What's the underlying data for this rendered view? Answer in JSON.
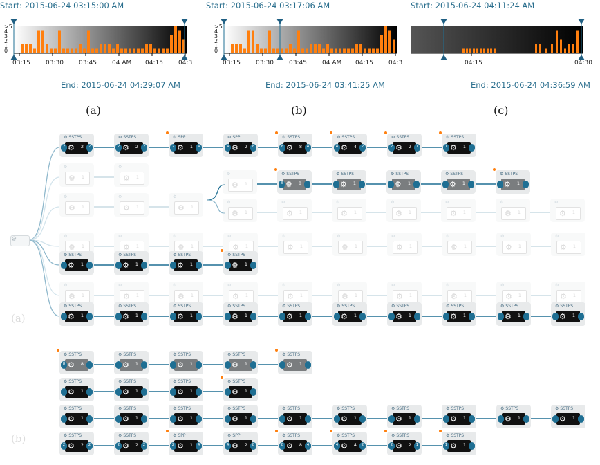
{
  "timelines": [
    {
      "start_label": "Start: 2015-06-24 03:15:00 AM",
      "end_label": "End: 2015-06-24 04:29:07 AM",
      "ticks": [
        "03:15",
        "03:30",
        "03:45",
        "04 AM",
        "04:15",
        "04:3"
      ],
      "y_ticks": [
        ">5",
        "4",
        "3",
        "2",
        "1",
        "0"
      ],
      "panel_label": "(a)"
    },
    {
      "start_label": "Start: 2015-06-24 03:17:06 AM",
      "end_label": "End: 2015-06-24 03:41:25 AM",
      "ticks": [
        "03:15",
        "03:30",
        "03:45",
        "04 AM",
        "04:15",
        "04:3"
      ],
      "y_ticks": [
        ">5",
        "4",
        "3",
        "2",
        "1",
        "0"
      ],
      "panel_label": "(b)"
    },
    {
      "start_label": "Start: 2015-06-24 04:11:24 AM",
      "end_label": "End: 2015-06-24 04:36:59 AM",
      "ticks": [
        "04:15",
        "04:30"
      ],
      "panel_label": "(c)"
    }
  ],
  "graph_a_label": "(a)",
  "graph_b_label": "(b)",
  "colors": {
    "bar": "#ff7f0e",
    "edge": "#1f6f93",
    "node_bg": "#e8eaeb",
    "node_body_dark": "#111111",
    "node_body_gray": "#7a7d7f",
    "label": "#2b6f8e"
  },
  "icon": "gear-icon",
  "graph_a_rows": [
    {
      "nodes": [
        {
          "t": "SSTPS",
          "c": "2",
          "pin": "2",
          "pin_r": "2"
        },
        {
          "t": "SSTPS",
          "c": "2",
          "pin": "2",
          "pin_r": "2"
        },
        {
          "t": "SPP",
          "c": "1",
          "dot": true,
          "pin": "2",
          "pin_r": "4"
        },
        {
          "t": "SPP",
          "c": "2",
          "pin": "4",
          "pin_r": "8"
        },
        {
          "t": "SSTPS",
          "c": "8",
          "dot": true,
          "pin": "8",
          "pin_r": "4"
        },
        {
          "t": "SSTPS",
          "c": "4",
          "dot": true,
          "pin": "4",
          "pin_r": "2"
        },
        {
          "t": "SSTPS",
          "c": "2",
          "dot": true,
          "pin": "2",
          "pin_r": "1"
        },
        {
          "t": "SSTPS",
          "c": "1",
          "dot": true,
          "pin": "1"
        }
      ]
    },
    {
      "ghost": true,
      "nodes": [
        {
          "t": "",
          "c": "1"
        },
        {
          "t": "",
          "c": "1"
        }
      ]
    },
    {
      "ghost": true,
      "nodes": [
        {
          "t": "",
          "c": "1"
        },
        {
          "t": "",
          "c": "1"
        },
        {
          "t": "",
          "c": "1"
        }
      ],
      "branch": [
        {
          "t": "",
          "c": "1",
          "ghost": true
        },
        {
          "t": "SSTPS",
          "c": "8",
          "dot": true,
          "pin": "8",
          "gray": true
        },
        {
          "t": "SSTPS",
          "c": "1",
          "gray": true
        },
        {
          "t": "SSTPS",
          "c": "1",
          "gray": true
        },
        {
          "t": "SSTPS",
          "c": "1",
          "gray": true
        },
        {
          "t": "SSTPS",
          "c": "1",
          "dot": true,
          "gray": true
        }
      ],
      "branch2": [
        {
          "t": "",
          "c": "1"
        },
        {
          "t": "",
          "c": "1"
        },
        {
          "t": "",
          "c": "1"
        },
        {
          "t": "",
          "c": "1"
        },
        {
          "t": "",
          "c": "1"
        },
        {
          "t": "",
          "c": "1"
        },
        {
          "t": "",
          "c": "1"
        }
      ]
    },
    {
      "ghost": true,
      "nodes": [
        {
          "t": "",
          "c": "1"
        },
        {
          "t": "",
          "c": "1"
        },
        {
          "t": "",
          "c": "1"
        },
        {
          "t": "",
          "c": "1"
        },
        {
          "t": "",
          "c": "1"
        },
        {
          "t": "",
          "c": "1"
        },
        {
          "t": "",
          "c": "1"
        },
        {
          "t": "",
          "c": "1"
        },
        {
          "t": "",
          "c": "1"
        },
        {
          "t": "",
          "c": "1"
        }
      ]
    },
    {
      "nodes": [
        {
          "t": "SSTPS",
          "c": "1"
        },
        {
          "t": "SSTPS",
          "c": "1"
        },
        {
          "t": "SSTPS",
          "c": "1"
        },
        {
          "t": "SSTPS",
          "c": "1",
          "dot": true
        }
      ]
    },
    {
      "ghost": true,
      "nodes": [
        {
          "t": "",
          "c": "1"
        },
        {
          "t": "",
          "c": "1"
        },
        {
          "t": "",
          "c": "1"
        },
        {
          "t": "",
          "c": "1"
        },
        {
          "t": "",
          "c": "1"
        },
        {
          "t": "",
          "c": "1"
        },
        {
          "t": "",
          "c": "1"
        },
        {
          "t": "",
          "c": "1"
        },
        {
          "t": "",
          "c": "1"
        },
        {
          "t": "",
          "c": "1"
        }
      ]
    },
    {
      "nodes": [
        {
          "t": "SSTPS",
          "c": "1"
        },
        {
          "t": "SSTPS",
          "c": "1"
        },
        {
          "t": "SSTPS",
          "c": "1"
        },
        {
          "t": "SSTPS",
          "c": "1"
        },
        {
          "t": "SSTPS",
          "c": "1"
        },
        {
          "t": "SSTPS",
          "c": "1"
        },
        {
          "t": "SSTPS",
          "c": "1"
        },
        {
          "t": "SSTPS",
          "c": "1"
        },
        {
          "t": "SSTPS",
          "c": "1"
        },
        {
          "t": "SSTPS",
          "c": "1"
        }
      ]
    }
  ],
  "graph_b_rows": [
    {
      "nodes": [
        {
          "t": "SSTPS",
          "c": "8",
          "dot": true,
          "pin": "8",
          "gray": true
        },
        {
          "t": "SSTPS",
          "c": "1",
          "gray": true
        },
        {
          "t": "SSTPS",
          "c": "1",
          "gray": true
        },
        {
          "t": "SSTPS",
          "c": "1",
          "gray": true
        },
        {
          "t": "SSTPS",
          "c": "1",
          "dot": true,
          "gray": true
        }
      ]
    },
    {
      "nodes": [
        {
          "t": "SSTPS",
          "c": "1"
        },
        {
          "t": "SSTPS",
          "c": "1"
        },
        {
          "t": "SSTPS",
          "c": "1"
        },
        {
          "t": "SSTPS",
          "c": "1",
          "dot": true
        }
      ]
    },
    {
      "nodes": [
        {
          "t": "SSTPS",
          "c": "1"
        },
        {
          "t": "SSTPS",
          "c": "1"
        },
        {
          "t": "SSTPS",
          "c": "1"
        },
        {
          "t": "SSTPS",
          "c": "1"
        },
        {
          "t": "SSTPS",
          "c": "1"
        },
        {
          "t": "SSTPS",
          "c": "1"
        },
        {
          "t": "SSTPS",
          "c": "1"
        },
        {
          "t": "SSTPS",
          "c": "1"
        },
        {
          "t": "SSTPS",
          "c": "1"
        },
        {
          "t": "SSTPS",
          "c": "1"
        }
      ]
    },
    {
      "nodes": [
        {
          "t": "SSTPS",
          "c": "2",
          "pin": "2",
          "pin_r": "2"
        },
        {
          "t": "SSTPS",
          "c": "2",
          "pin": "2",
          "pin_r": "2"
        },
        {
          "t": "SPP",
          "c": "1",
          "dot": true,
          "pin": "2",
          "pin_r": "4"
        },
        {
          "t": "SPP",
          "c": "2",
          "pin": "4",
          "pin_r": "8"
        },
        {
          "t": "SSTPS",
          "c": "8",
          "dot": true,
          "pin": "8",
          "pin_r": "4"
        },
        {
          "t": "SSTPS",
          "c": "4",
          "dot": true,
          "pin": "4",
          "pin_r": "2"
        },
        {
          "t": "SSTPS",
          "c": "2",
          "dot": true,
          "pin": "2",
          "pin_r": "1"
        },
        {
          "t": "SSTPS",
          "c": "1",
          "dot": true,
          "pin": "1"
        }
      ]
    }
  ]
}
